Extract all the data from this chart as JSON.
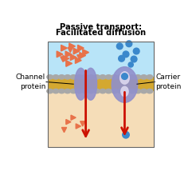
{
  "title_line1": "Passive transport:",
  "title_line2": "Facilitated diffusion",
  "bg_color": "#ffffff",
  "top_cell_color": "#b8e4f8",
  "bottom_cell_color": "#f5ddb8",
  "membrane_gold": "#d4a830",
  "membrane_gray": "#a8a8a8",
  "protein_color": "#9090cc",
  "protein_dark": "#7878b0",
  "arrow_color": "#cc1100",
  "triangle_color": "#e8724a",
  "circle_color": "#3a88cc",
  "label_channel": "Channel\nprotein",
  "label_carrier": "Carrier\nprotein",
  "figsize": [
    2.41,
    2.19
  ],
  "dpi": 100
}
